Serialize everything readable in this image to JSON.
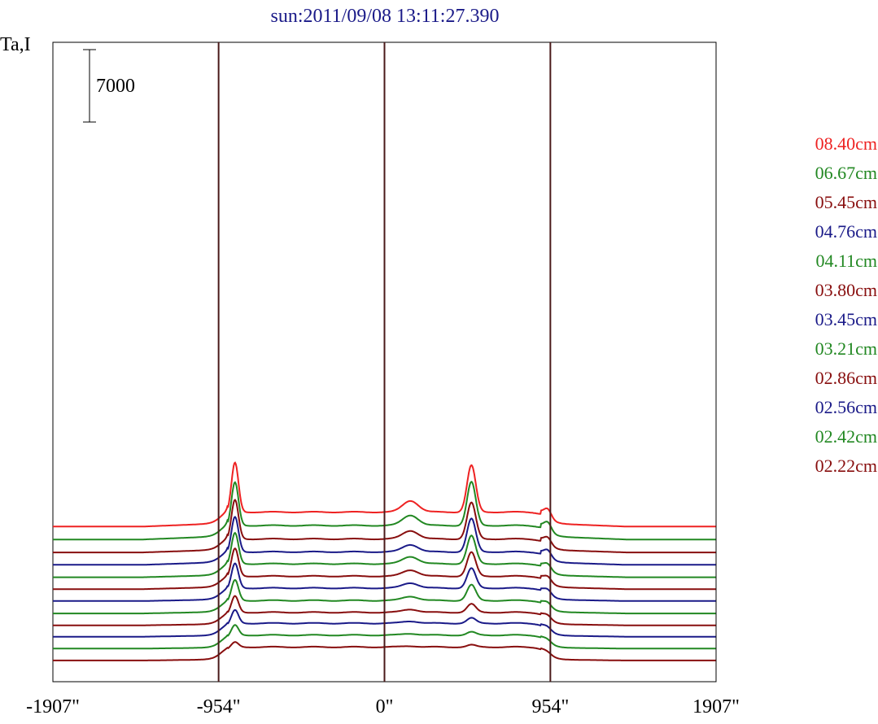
{
  "chart_data": {
    "type": "line",
    "title": "sun:2011/09/08 13:11:27.390",
    "ylabel": "Ta,I",
    "xlabel": "",
    "x_ticks": [
      "-1907\"",
      "-954\"",
      "0\"",
      "954\"",
      "1907\""
    ],
    "x_tick_values": [
      -1907,
      -954,
      0,
      954,
      1907
    ],
    "xlim": [
      -1907,
      1907
    ],
    "scale_bar_label": "7000",
    "scale_bar_value": 7000,
    "vertical_lines_at": [
      -954,
      0,
      954
    ],
    "grid": false,
    "legend_position": "right",
    "series_colors": {
      "08.40cm": "#ee2222",
      "06.67cm": "#228822",
      "05.45cm": "#880e0e",
      "04.76cm": "#1a1a88",
      "04.11cm": "#228822",
      "03.80cm": "#880e0e",
      "03.45cm": "#1a1a88",
      "03.21cm": "#228822",
      "02.86cm": "#880e0e",
      "02.56cm": "#1a1a88",
      "02.42cm": "#228822",
      "02.22cm": "#880e0e"
    },
    "legend": [
      {
        "name": "08.40cm",
        "color": "#ee2222"
      },
      {
        "name": "06.67cm",
        "color": "#228822"
      },
      {
        "name": "05.45cm",
        "color": "#880e0e"
      },
      {
        "name": "04.76cm",
        "color": "#1a1a88"
      },
      {
        "name": "04.11cm",
        "color": "#228822"
      },
      {
        "name": "03.80cm",
        "color": "#880e0e"
      },
      {
        "name": "03.45cm",
        "color": "#1a1a88"
      },
      {
        "name": "03.21cm",
        "color": "#228822"
      },
      {
        "name": "02.86cm",
        "color": "#880e0e"
      },
      {
        "name": "02.56cm",
        "color": "#1a1a88"
      },
      {
        "name": "02.42cm",
        "color": "#228822"
      },
      {
        "name": "02.22cm",
        "color": "#880e0e"
      }
    ],
    "traces": [
      {
        "color": "#ee2222",
        "base": 15000,
        "disk": 1400,
        "limbL": 300,
        "p954": 4800,
        "p520": 4500,
        "p310": 1100,
        "p954r": 700
      },
      {
        "color": "#228822",
        "base": 13750,
        "disk": 1350,
        "limbL": 300,
        "p954": 4200,
        "p520": 4200,
        "p310": 1000,
        "p954r": 700
      },
      {
        "color": "#880e0e",
        "base": 12500,
        "disk": 1300,
        "limbL": 250,
        "p954": 3800,
        "p520": 3500,
        "p310": 800,
        "p954r": 550
      },
      {
        "color": "#1a1a88",
        "base": 11300,
        "disk": 1250,
        "limbL": 250,
        "p954": 3400,
        "p520": 3200,
        "p310": 700,
        "p954r": 550
      },
      {
        "color": "#228822",
        "base": 10100,
        "disk": 1300,
        "limbL": 200,
        "p954": 3000,
        "p520": 2700,
        "p310": 700,
        "p954r": 450
      },
      {
        "color": "#880e0e",
        "base": 8950,
        "disk": 1250,
        "limbL": 200,
        "p954": 2700,
        "p520": 2300,
        "p310": 600,
        "p954r": 400
      },
      {
        "color": "#1a1a88",
        "base": 7800,
        "disk": 1250,
        "limbL": 150,
        "p954": 2400,
        "p520": 1900,
        "p310": 500,
        "p954r": 350
      },
      {
        "color": "#228822",
        "base": 6600,
        "disk": 1250,
        "limbL": 150,
        "p954": 2000,
        "p520": 1500,
        "p310": 400,
        "p954r": 300
      },
      {
        "color": "#880e0e",
        "base": 5450,
        "disk": 1250,
        "limbL": 120,
        "p954": 1600,
        "p520": 800,
        "p310": 300,
        "p954r": 250
      },
      {
        "color": "#1a1a88",
        "base": 4350,
        "disk": 1300,
        "limbL": 120,
        "p954": 1300,
        "p520": 500,
        "p310": 200,
        "p954r": 200
      },
      {
        "color": "#228822",
        "base": 3200,
        "disk": 1300,
        "limbL": 100,
        "p954": 1000,
        "p520": 300,
        "p310": 150,
        "p954r": 150
      },
      {
        "color": "#880e0e",
        "base": 2050,
        "disk": 1300,
        "limbL": 100,
        "p954": 500,
        "p520": 200,
        "p310": 100,
        "p954r": 100
      }
    ]
  }
}
